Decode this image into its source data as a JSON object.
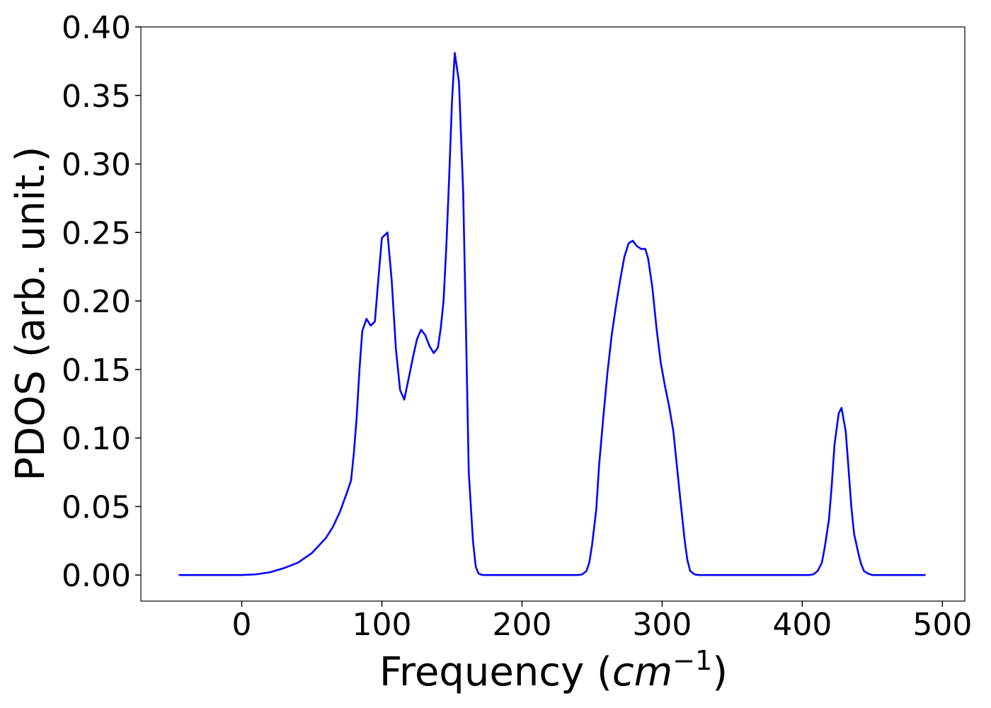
{
  "chart_data": {
    "type": "line",
    "xlabel": [
      "Frequency (",
      "cm",
      "−1",
      ")"
    ],
    "ylabel": "PDOS (arb. unit.)",
    "color": "#0000ff",
    "x": [
      -45,
      -30,
      -15,
      0,
      10,
      20,
      30,
      40,
      50,
      60,
      65,
      70,
      75,
      78,
      80,
      82,
      84,
      86,
      89,
      92,
      95,
      97,
      100,
      104,
      107,
      110,
      113,
      116,
      118,
      122,
      125,
      128,
      131,
      134,
      137,
      140,
      142,
      144,
      146,
      148,
      150,
      152,
      155,
      158,
      160,
      162,
      165,
      167,
      169,
      172,
      200,
      240,
      243,
      246,
      248,
      250,
      253,
      255,
      258,
      261,
      264,
      267,
      270,
      273,
      276,
      279,
      282,
      285,
      288,
      290,
      293,
      296,
      299,
      302,
      305,
      308,
      310,
      313,
      316,
      318,
      320,
      323,
      326,
      360,
      405,
      408,
      411,
      414,
      416,
      419,
      421,
      423,
      426,
      428,
      431,
      433,
      435,
      437,
      440,
      442,
      444,
      447,
      450,
      488
    ],
    "values": [
      0,
      0,
      0,
      0,
      0.0005,
      0.002,
      0.005,
      0.009,
      0.016,
      0.027,
      0.035,
      0.046,
      0.06,
      0.069,
      0.089,
      0.115,
      0.15,
      0.178,
      0.187,
      0.182,
      0.185,
      0.21,
      0.246,
      0.25,
      0.215,
      0.165,
      0.135,
      0.128,
      0.138,
      0.158,
      0.172,
      0.179,
      0.175,
      0.167,
      0.162,
      0.166,
      0.18,
      0.2,
      0.24,
      0.29,
      0.345,
      0.381,
      0.36,
      0.28,
      0.18,
      0.075,
      0.025,
      0.006,
      0.001,
      0,
      0,
      0,
      0.0005,
      0.003,
      0.009,
      0.022,
      0.048,
      0.08,
      0.115,
      0.148,
      0.175,
      0.196,
      0.215,
      0.232,
      0.242,
      0.244,
      0.24,
      0.238,
      0.238,
      0.231,
      0.21,
      0.18,
      0.155,
      0.138,
      0.123,
      0.105,
      0.085,
      0.055,
      0.026,
      0.011,
      0.003,
      0.0005,
      0,
      0,
      0,
      0.0005,
      0.003,
      0.009,
      0.02,
      0.04,
      0.065,
      0.095,
      0.118,
      0.122,
      0.105,
      0.078,
      0.05,
      0.03,
      0.016,
      0.008,
      0.003,
      0.001,
      0,
      0
    ],
    "xlim": [
      -72,
      516
    ],
    "ylim": [
      -0.019,
      0.4
    ],
    "xticks": [
      0,
      100,
      200,
      300,
      400,
      500
    ],
    "yticks": [
      {
        "value": 0,
        "label": "0.00"
      },
      {
        "value": 0.05,
        "label": "0.05"
      },
      {
        "value": 0.1,
        "label": "0.10"
      },
      {
        "value": 0.15,
        "label": "0.15"
      },
      {
        "value": 0.2,
        "label": "0.20"
      },
      {
        "value": 0.25,
        "label": "0.25"
      },
      {
        "value": 0.3,
        "label": "0.30"
      },
      {
        "value": 0.35,
        "label": "0.35"
      },
      {
        "value": 0.4,
        "label": "0.40"
      }
    ],
    "grid": false
  }
}
